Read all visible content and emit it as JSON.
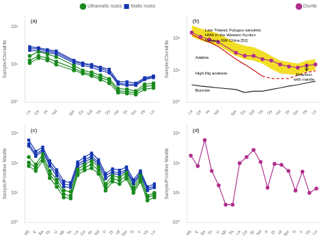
{
  "chart_data": [
    {
      "type": "line",
      "log": "y",
      "categories": [
        "La",
        "Ce",
        "Pr",
        "Nd",
        null,
        "Sm",
        "Eu",
        "Gd",
        "Tb",
        "Dy",
        "Ho",
        "Er",
        "Tm",
        "Yb",
        "Lu"
      ],
      "ylabel": "Sample/Chondrite",
      "ylim": [
        1,
        200
      ],
      "yticks": [
        {
          "value": 1,
          "label": "10⁰"
        },
        {
          "value": 10,
          "label": "10¹"
        },
        {
          "value": 100,
          "label": "10²"
        }
      ],
      "grid": false,
      "legend": "upper right",
      "annotations": [
        {
          "text": "(a)"
        }
      ],
      "series": [
        {
          "name": "Mafic rocks",
          "color": "#1535b0",
          "marker": "square",
          "line_style": "solid",
          "values": [
            30,
            28,
            25,
            23,
            null,
            13,
            11,
            10,
            8.5,
            7.5,
            3.5,
            3.5,
            3.2,
            4.5,
            5.0
          ]
        },
        {
          "name": "Mafic rocks",
          "color": "#1535b0",
          "marker": "square",
          "line_style": "solid",
          "values": [
            27,
            26,
            23,
            21,
            null,
            12,
            10.5,
            9.5,
            8.0,
            6.5,
            3.2,
            3.0,
            3.0,
            4.2,
            4.8
          ]
        },
        {
          "name": "Mafic rocks",
          "color": "#1535b0",
          "marker": "square",
          "line_style": "solid",
          "values": [
            24,
            23,
            21,
            19,
            null,
            11,
            9.5,
            8.5,
            7.0,
            6.0,
            3.0,
            2.8,
            2.8,
            4.0,
            4.5
          ]
        },
        {
          "name": "Ultramafic rocks",
          "color": "#1a8a20",
          "marker": "circle",
          "line_style": "solid",
          "values": [
            17,
            22,
            19,
            16,
            null,
            9.5,
            7.0,
            6.2,
            5.2,
            4.2,
            2.3,
            2.2,
            2.0,
            3.0,
            3.2
          ]
        },
        {
          "name": "Ultramafic rocks",
          "color": "#1a8a20",
          "marker": "circle",
          "line_style": "solid",
          "values": [
            13,
            17,
            15,
            12,
            null,
            8.0,
            6.2,
            5.5,
            4.5,
            3.8,
            2.0,
            1.9,
            1.8,
            2.6,
            2.8
          ]
        },
        {
          "name": "Ultramafic rocks",
          "color": "#1a8a20",
          "marker": "circle",
          "line_style": "solid",
          "values": [
            11,
            15,
            13,
            10,
            null,
            7.0,
            5.8,
            5.0,
            4.0,
            3.2,
            1.8,
            1.7,
            1.6,
            2.2,
            2.4
          ]
        }
      ]
    },
    {
      "type": "line",
      "log": "y",
      "categories": [
        "La",
        "Ce",
        "Pr",
        "Nd",
        null,
        "Sm",
        "Eu",
        "Gd",
        "Tb",
        "Dy",
        "Ho",
        "Er",
        "Tm",
        "Yb",
        "Lu"
      ],
      "ylabel": "Sample/Chondrite",
      "ylim": [
        1,
        500
      ],
      "yticks": [
        {
          "value": 1,
          "label": "10⁰"
        },
        {
          "value": 10,
          "label": "10¹"
        },
        {
          "value": 100,
          "label": "10²"
        }
      ],
      "grid": false,
      "legend": "upper right",
      "annotations": [
        {
          "text": "(b)"
        },
        {
          "text": "Late Triassic Fulugou sanukitic\nHMA in the Western Kunlun\nOrogen, NW China [52]"
        },
        {
          "text": "Adakite"
        },
        {
          "text": "High-Mg andesite"
        },
        {
          "text": "Boninite"
        },
        {
          "text": "Reaction\nwith mantle"
        }
      ],
      "series": [
        {
          "type": "band",
          "color": "#f0d800",
          "lower": [
            110,
            85,
            70,
            58,
            null,
            28,
            22,
            20,
            16,
            11,
            8,
            7.5,
            7,
            9,
            10
          ],
          "upper": [
            250,
            200,
            170,
            140,
            null,
            70,
            58,
            52,
            40,
            28,
            20,
            18,
            16,
            20,
            22
          ]
        },
        {
          "color": "#cc1111",
          "line_style": "solid",
          "values": [
            130,
            95,
            75,
            55,
            null,
            22,
            15,
            10,
            6.5,
            null,
            null,
            null,
            null,
            null,
            null
          ]
        },
        {
          "color": "#cc1111",
          "line_style": "dashed",
          "values": [
            null,
            null,
            null,
            null,
            null,
            null,
            null,
            null,
            6.5,
            5.5,
            5.5,
            5.5,
            7,
            8.5,
            9.5
          ]
        },
        {
          "color": "#222222",
          "line_style": "solid",
          "values": [
            3.5,
            3.2,
            3.0,
            2.8,
            null,
            2.5,
            2.0,
            2.2,
            2.2,
            2.5,
            2.8,
            3.2,
            3.5,
            4.0,
            4.5
          ]
        },
        {
          "name": "Diorite",
          "color": "#b03090",
          "marker": "circle",
          "line_style": "solid",
          "values": [
            150,
            110,
            90,
            75,
            null,
            35,
            28,
            28,
            22,
            20,
            15,
            13,
            12,
            14,
            15
          ]
        }
      ]
    },
    {
      "type": "line",
      "log": "y",
      "categories": [
        "Rb",
        "K",
        "Ba",
        "Th",
        "U",
        "Nb",
        "Ta",
        "La",
        "Ce",
        "Sr",
        "Nd",
        "P",
        "Zr",
        "Hf",
        "Sm",
        "Ti",
        "Y",
        "Yb",
        "Lu"
      ],
      "ylabel": "Sample/Primitive Mantle",
      "ylim": [
        1,
        2000
      ],
      "yticks": [
        {
          "value": 1,
          "label": "10⁰"
        },
        {
          "value": 10,
          "label": "10¹"
        },
        {
          "value": 100,
          "label": "10²"
        },
        {
          "value": 1000,
          "label": "10³"
        }
      ],
      "grid": false,
      "annotations": [
        {
          "text": "(c)"
        }
      ],
      "series": [
        {
          "color": "#1535b0",
          "marker": "square",
          "line_style": "solid",
          "values": [
            600,
            250,
            350,
            120,
            60,
            25,
            22,
            110,
            160,
            220,
            130,
            45,
            65,
            58,
            75,
            28,
            55,
            16,
            20
          ]
        },
        {
          "color": "#1535b0",
          "marker": "square",
          "line_style": "solid",
          "values": [
            450,
            200,
            290,
            95,
            48,
            20,
            18,
            90,
            130,
            175,
            105,
            38,
            52,
            47,
            62,
            23,
            48,
            14,
            17
          ]
        },
        {
          "color": "#1535b0",
          "marker": "square",
          "line_style": "solid",
          "values": [
            380,
            170,
            260,
            80,
            38,
            16,
            15,
            78,
            108,
            150,
            88,
            30,
            45,
            40,
            55,
            20,
            42,
            12,
            15
          ]
        },
        {
          "color": "#1a8a20",
          "marker": "circle",
          "line_style": "solid",
          "values": [
            160,
            90,
            200,
            55,
            28,
            12,
            11,
            62,
            92,
            120,
            75,
            20,
            38,
            33,
            48,
            15,
            38,
            8,
            10
          ]
        },
        {
          "color": "#1a8a20",
          "marker": "circle",
          "line_style": "solid",
          "values": [
            105,
            70,
            155,
            42,
            22,
            9,
            8,
            50,
            72,
            90,
            58,
            16,
            30,
            26,
            38,
            12,
            30,
            7,
            8.5
          ]
        },
        {
          "color": "#1a8a20",
          "marker": "circle",
          "line_style": "solid",
          "values": [
            80,
            55,
            120,
            32,
            16,
            7,
            6.5,
            40,
            58,
            68,
            44,
            12,
            24,
            20,
            30,
            10,
            24,
            5.5,
            7
          ]
        }
      ]
    },
    {
      "type": "line",
      "log": "y",
      "categories": [
        "Rb",
        "K",
        "Ba",
        "Th",
        "U",
        "Nb",
        "Ta",
        "La",
        "Ce",
        "Sr",
        "Nd",
        "P",
        "Zr",
        "Hf",
        "Sm",
        "Ti",
        "Y",
        "Yb",
        "Lu"
      ],
      "ylabel": "Sample/Primitive Mantle",
      "ylim": [
        1,
        2000
      ],
      "yticks": [
        {
          "value": 1,
          "label": "10⁰"
        },
        {
          "value": 10,
          "label": "10¹"
        },
        {
          "value": 100,
          "label": "10²"
        },
        {
          "value": 1000,
          "label": "10³"
        }
      ],
      "grid": false,
      "annotations": [
        {
          "text": "(d)"
        }
      ],
      "series": [
        {
          "color": "#b03090",
          "marker": "circle",
          "line_style": "solid",
          "values": [
            180,
            80,
            600,
            55,
            18,
            4,
            4,
            100,
            160,
            280,
            110,
            15,
            95,
            88,
            55,
            12,
            52,
            10,
            14
          ]
        }
      ]
    }
  ]
}
